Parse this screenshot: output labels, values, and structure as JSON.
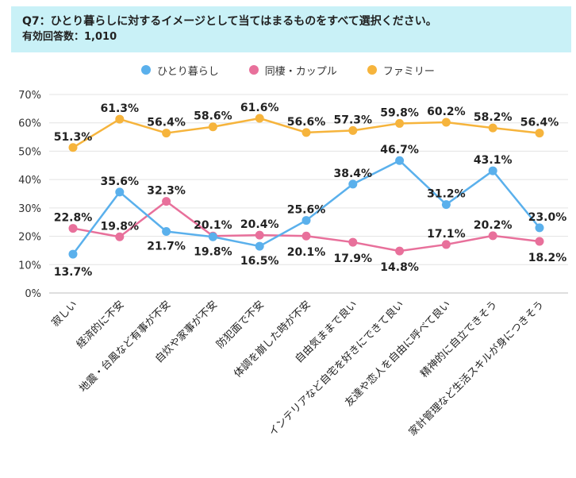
{
  "header": {
    "question": "Q7：ひとり暮らしに対するイメージとして当てはまるものをすべて選択ください。",
    "respondents": "有効回答数：1,010"
  },
  "colors": {
    "header_bg": "#c9f1f7",
    "grid": "#e3e3e3",
    "hitori": "#5ab0ec",
    "dousei": "#e8709b",
    "family": "#f6b43c"
  },
  "chart_data": {
    "type": "line",
    "categories": [
      "寂しい",
      "経済的に不安",
      "地震・台風など有事が不安",
      "自炊や家事が不安",
      "防犯面で不安",
      "体調を崩した時が不安",
      "自由気ままで良い",
      "インテリアなど自宅を好きにできて良い",
      "友達や恋人を自由に呼べて良い",
      "精神的に自立できそう",
      "家計管理など生活スキルが身につきそう"
    ],
    "series": [
      {
        "name": "ひとり暮らし",
        "color": "#5ab0ec",
        "values": [
          13.7,
          35.6,
          21.7,
          19.8,
          16.5,
          25.6,
          38.4,
          46.7,
          31.2,
          43.1,
          23.0
        ],
        "labels": [
          "13.7%",
          "35.6%",
          "21.7%",
          "19.8%",
          "16.5%",
          "25.6%",
          "38.4%",
          "46.7%",
          "31.2%",
          "43.1%",
          "23.0%"
        ]
      },
      {
        "name": "同棲・カップル",
        "color": "#e8709b",
        "values": [
          22.8,
          19.8,
          32.3,
          20.1,
          20.4,
          20.1,
          17.9,
          14.8,
          17.1,
          20.2,
          18.2
        ],
        "labels": [
          "22.8%",
          "19.8%",
          "32.3%",
          "20.1%",
          "20.4%",
          "20.1%",
          "17.9%",
          "14.8%",
          "17.1%",
          "20.2%",
          "18.2%"
        ]
      },
      {
        "name": "ファミリー",
        "color": "#f6b43c",
        "values": [
          51.3,
          61.3,
          56.4,
          58.6,
          61.6,
          56.6,
          57.3,
          59.8,
          60.2,
          58.2,
          56.4
        ],
        "labels": [
          "51.3%",
          "61.3%",
          "56.4%",
          "58.6%",
          "61.6%",
          "56.6%",
          "57.3%",
          "59.8%",
          "60.2%",
          "58.2%",
          "56.4%"
        ]
      }
    ],
    "y_ticks": [
      "0%",
      "10%",
      "20%",
      "30%",
      "40%",
      "50%",
      "60%",
      "70%"
    ],
    "ylim": [
      0,
      70
    ],
    "grid": true,
    "legend": "top-center"
  }
}
